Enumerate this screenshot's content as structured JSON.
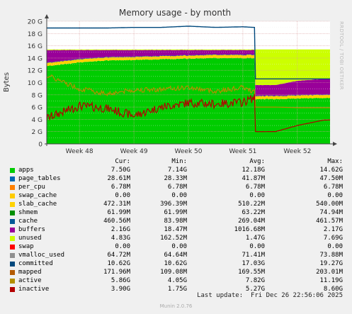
{
  "chart_data": {
    "type": "area",
    "title": "Memory usage - by month",
    "ylabel": "Bytes",
    "watermark": "RRDTOOL / TOBI OETIKER",
    "ylim": [
      0,
      20
    ],
    "y_unit": "G",
    "y_ticks": [
      "0",
      "2 G",
      "4 G",
      "6 G",
      "8 G",
      "10 G",
      "12 G",
      "14 G",
      "16 G",
      "18 G",
      "20 G"
    ],
    "x_ticks": [
      "Week 48",
      "Week 49",
      "Week 50",
      "Week 51",
      "Week 52"
    ],
    "grid": true,
    "legend_columns": [
      "Cur:",
      "Min:",
      "Avg:",
      "Max:"
    ],
    "stacked_order": [
      "apps",
      "page_tables",
      "per_cpu",
      "swap_cache",
      "slab_cache",
      "shmem",
      "cache",
      "buffers",
      "unused",
      "swap"
    ],
    "series": [
      {
        "name": "apps",
        "color": "#00cc00",
        "kind": "area",
        "cur": "7.50G",
        "min": "7.14G",
        "avg": "12.18G",
        "max": "14.62G"
      },
      {
        "name": "page_tables",
        "color": "#0066b3",
        "kind": "area",
        "cur": "28.61M",
        "min": "28.33M",
        "avg": "41.87M",
        "max": "47.50M"
      },
      {
        "name": "per_cpu",
        "color": "#ff8000",
        "kind": "area",
        "cur": "6.78M",
        "min": "6.78M",
        "avg": "6.78M",
        "max": "6.78M"
      },
      {
        "name": "swap_cache",
        "color": "#ffcc00",
        "kind": "area",
        "cur": "0.00",
        "min": "0.00",
        "avg": "0.00",
        "max": "0.00"
      },
      {
        "name": "slab_cache",
        "color": "#ffd200",
        "kind": "area",
        "cur": "472.31M",
        "min": "396.39M",
        "avg": "510.22M",
        "max": "540.00M"
      },
      {
        "name": "shmem",
        "color": "#008f00",
        "kind": "area",
        "cur": "61.99M",
        "min": "61.99M",
        "avg": "63.22M",
        "max": "74.94M"
      },
      {
        "name": "cache",
        "color": "#005796",
        "kind": "area",
        "cur": "460.56M",
        "min": "83.98M",
        "avg": "269.04M",
        "max": "461.57M"
      },
      {
        "name": "buffers",
        "color": "#990099",
        "kind": "area",
        "cur": "2.16G",
        "min": "18.47M",
        "avg": "1016.68M",
        "max": "2.17G"
      },
      {
        "name": "unused",
        "color": "#ccff00",
        "kind": "area",
        "cur": "4.83G",
        "min": "162.52M",
        "avg": "1.47G",
        "max": "7.69G"
      },
      {
        "name": "swap",
        "color": "#ff0000",
        "kind": "area",
        "cur": "0.00",
        "min": "0.00",
        "avg": "0.00",
        "max": "0.00"
      },
      {
        "name": "vmalloc_used",
        "color": "#8f8f8f",
        "kind": "line",
        "cur": "64.72M",
        "min": "64.64M",
        "avg": "71.41M",
        "max": "73.88M"
      },
      {
        "name": "committed",
        "color": "#00487d",
        "kind": "line",
        "cur": "10.62G",
        "min": "10.62G",
        "avg": "17.03G",
        "max": "19.27G"
      },
      {
        "name": "mapped",
        "color": "#b35a00",
        "kind": "line",
        "cur": "171.96M",
        "min": "109.08M",
        "avg": "169.55M",
        "max": "203.01M"
      },
      {
        "name": "active",
        "color": "#b38f00",
        "kind": "line",
        "cur": "5.86G",
        "min": "4.05G",
        "avg": "7.82G",
        "max": "11.19G"
      },
      {
        "name": "inactive",
        "color": "#b30000",
        "kind": "line",
        "cur": "3.90G",
        "min": "1.75G",
        "avg": "5.27G",
        "max": "8.60G"
      }
    ],
    "approx_profile_GB": {
      "x_weeks": [
        47.4,
        48.0,
        48.5,
        49.0,
        49.5,
        50.0,
        50.5,
        51.0,
        51.2,
        51.6,
        52.0,
        52.5
      ],
      "apps": [
        12.7,
        13.3,
        13.6,
        13.7,
        13.8,
        13.9,
        14.0,
        14.0,
        14.0,
        7.3,
        7.4,
        7.5
      ],
      "buffers_top": [
        15.3,
        15.3,
        15.3,
        15.3,
        15.3,
        15.3,
        15.3,
        15.3,
        15.3,
        9.6,
        10.3,
        10.6
      ],
      "total_top": [
        15.4,
        15.4,
        15.4,
        15.4,
        15.4,
        15.4,
        15.4,
        15.4,
        15.4,
        15.4,
        15.4,
        15.4
      ],
      "committed": [
        18.9,
        18.9,
        18.9,
        19.0,
        19.0,
        19.2,
        19.0,
        19.1,
        19.0,
        10.6,
        10.6,
        10.6
      ],
      "active": [
        11.2,
        9.0,
        8.2,
        8.8,
        8.9,
        9.2,
        8.6,
        9.2,
        8.5,
        6.0,
        5.9,
        5.9
      ],
      "inactive": [
        4.2,
        6.2,
        5.8,
        4.6,
        6.0,
        6.7,
        6.5,
        6.8,
        7.5,
        2.0,
        3.0,
        3.9
      ]
    }
  },
  "legend": {
    "last_update": "Last update:  Fri Dec 26 22:56:06 2025",
    "footer": "Munin 2.0.76"
  }
}
